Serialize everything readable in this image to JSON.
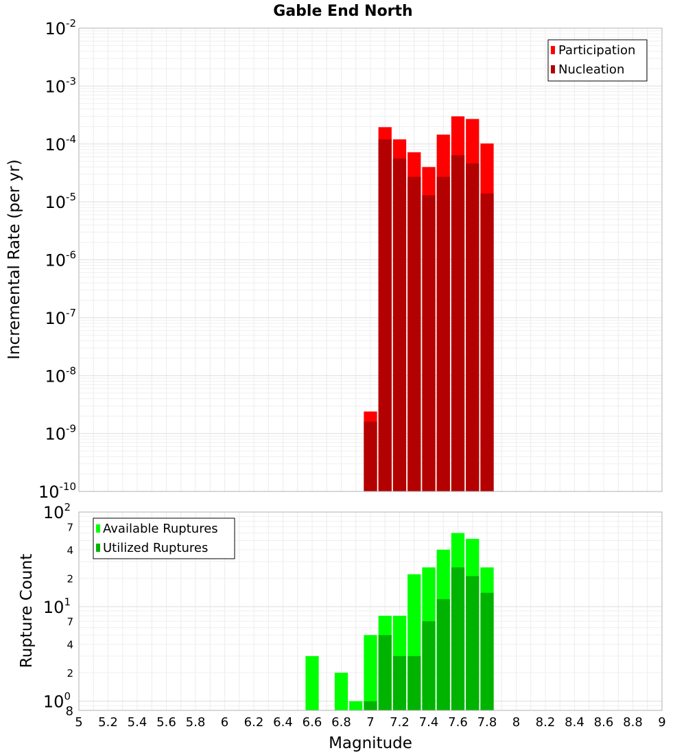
{
  "chart_data": [
    {
      "type": "bar",
      "title": "Gable End North",
      "xlabel": "",
      "ylabel": "Incremental Rate (per yr)",
      "yscale": "log",
      "xlim": [
        5,
        9
      ],
      "ylim": [
        1e-10,
        0.01
      ],
      "y_ticks": [
        {
          "base": "10",
          "exp": "-10"
        },
        {
          "base": "10",
          "exp": "-9"
        },
        {
          "base": "10",
          "exp": "-8"
        },
        {
          "base": "10",
          "exp": "-7"
        },
        {
          "base": "10",
          "exp": "-6"
        },
        {
          "base": "10",
          "exp": "-5"
        },
        {
          "base": "10",
          "exp": "-4"
        },
        {
          "base": "10",
          "exp": "-3"
        },
        {
          "base": "10",
          "exp": "-2"
        }
      ],
      "grid": true,
      "legend_position": "top-right",
      "x": [
        7.0,
        7.1,
        7.2,
        7.3,
        7.4,
        7.5,
        7.6,
        7.7,
        7.8
      ],
      "series": [
        {
          "name": "Participation",
          "color": "#ff0000",
          "values": [
            2.4e-09,
            0.000195,
            0.00012,
            7.2e-05,
            4e-05,
            0.000145,
            0.0003,
            0.00027,
            0.000102
          ]
        },
        {
          "name": "Nucleation",
          "color": "#b30000",
          "values": [
            1.6e-09,
            0.00012,
            5.6e-05,
            2.7e-05,
            1.3e-05,
            2.7e-05,
            6.4e-05,
            4.6e-05,
            1.4e-05
          ]
        }
      ]
    },
    {
      "type": "bar",
      "title": "",
      "xlabel": "Magnitude",
      "ylabel": "Rupture Count",
      "yscale": "log",
      "xlim": [
        5,
        9
      ],
      "ylim": [
        0.8,
        100
      ],
      "x_ticks": [
        "5",
        "5.2",
        "5.4",
        "5.6",
        "5.8",
        "6",
        "6.2",
        "6.4",
        "6.6",
        "6.8",
        "7",
        "7.2",
        "7.4",
        "7.6",
        "7.8",
        "8",
        "8.2",
        "8.4",
        "8.6",
        "8.8",
        "9"
      ],
      "y_major_ticks": [
        {
          "value": 1,
          "base": "10",
          "exp": "0"
        },
        {
          "value": 10,
          "base": "10",
          "exp": "1"
        },
        {
          "value": 100,
          "base": "10",
          "exp": "2"
        }
      ],
      "y_bottom_label": "8",
      "y_minor_ticks": [
        {
          "value": 2,
          "label": "2"
        },
        {
          "value": 4,
          "label": "4"
        },
        {
          "value": 7,
          "label": "7"
        },
        {
          "value": 20,
          "label": "2"
        },
        {
          "value": 40,
          "label": "4"
        },
        {
          "value": 70,
          "label": "7"
        }
      ],
      "grid": true,
      "legend_position": "top-left",
      "x": [
        6.6,
        6.7,
        6.8,
        6.9,
        7.0,
        7.1,
        7.2,
        7.3,
        7.4,
        7.5,
        7.6,
        7.7,
        7.8
      ],
      "series": [
        {
          "name": "Available Ruptures",
          "color": "#00ff00",
          "values": [
            3,
            0,
            2,
            1,
            5,
            8,
            8,
            22,
            26,
            40,
            60,
            52,
            26
          ]
        },
        {
          "name": "Utilized Ruptures",
          "color": "#00b300",
          "values": [
            0,
            0,
            0,
            0,
            1,
            5,
            3,
            3,
            7,
            12,
            26,
            21,
            14
          ]
        }
      ]
    }
  ]
}
